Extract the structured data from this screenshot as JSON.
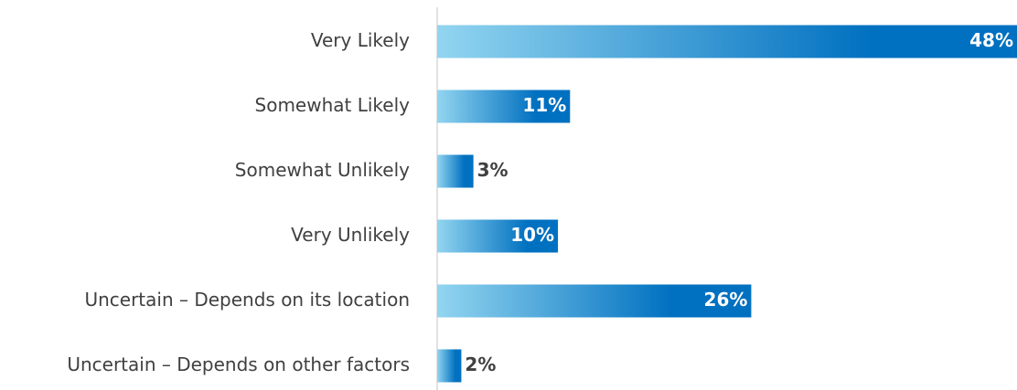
{
  "chart_data": {
    "type": "hbar",
    "categories": [
      "Very Likely",
      "Somewhat Likely",
      "Somewhat Unlikely",
      "Very Unlikely",
      "Uncertain – Depends on its location",
      "Uncertain – Depends on other factors"
    ],
    "values": [
      48,
      11,
      3,
      10,
      26,
      2
    ],
    "value_labels": [
      "48%",
      "11%",
      "3%",
      "10%",
      "26%",
      "2%"
    ],
    "color": [
      "#92d5f0",
      "#0070c0"
    ]
  }
}
